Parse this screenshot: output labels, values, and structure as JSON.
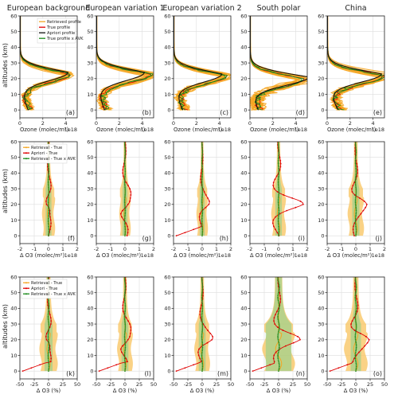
{
  "figure": {
    "column_titles": [
      "European background",
      "European variation 1",
      "European variation 2",
      "South polar",
      "China"
    ],
    "panel_letters": [
      "(a)",
      "(b)",
      "(c)",
      "(d)",
      "(e)",
      "(f)",
      "(g)",
      "(h)",
      "(i)",
      "(j)",
      "(k)",
      "(l)",
      "(m)",
      "(n)",
      "(o)"
    ],
    "ylabel": "altitudes (km)",
    "row_xlabels": [
      "Ozone (molec/m²)",
      "Δ O3 (molec/m²)",
      "Δ O3 (%)"
    ],
    "offset_text": "1e18",
    "colors": {
      "retrieved": "#f5a623",
      "true": "#e00000",
      "apriori": "#111111",
      "true_avk": "#1a8a1a",
      "band_orange": "#f8c35c",
      "band_green": "#8cd18c",
      "grid": "#dddddd"
    }
  },
  "chart_data": [
    {
      "type": "line",
      "row": 1,
      "legend": [
        "Retrieved profile",
        "True profile",
        "Apriori profile",
        "True profile x AVK"
      ],
      "legend_position": "top-right (panel a)",
      "xlim": [
        0,
        5
      ],
      "ylim": [
        -5,
        60
      ],
      "xticks": [
        0,
        2,
        4
      ],
      "yticks": [
        0,
        10,
        20,
        30,
        40,
        50,
        60
      ],
      "grid": true,
      "panels": [
        {
          "letter": "(a)",
          "title": "European background",
          "peak_alt": 23,
          "peak_val": 4.3,
          "apriori_peak": 4.1,
          "spread": 0.4,
          "low_val": 0.9
        },
        {
          "letter": "(b)",
          "title": "European variation 1",
          "peak_alt": 23,
          "peak_val": 4.7,
          "apriori_peak": 4.1,
          "spread": 0.5,
          "low_val": 0.9
        },
        {
          "letter": "(c)",
          "title": "European variation 2",
          "peak_alt": 22,
          "peak_val": 4.5,
          "apriori_peak": 4.1,
          "spread": 0.6,
          "low_val": 1.0
        },
        {
          "letter": "(d)",
          "title": "South polar",
          "peak_alt": 20,
          "peak_val": 4.5,
          "apriori_peak": 5.0,
          "spread": 0.9,
          "low_val": 0.9
        },
        {
          "letter": "(e)",
          "title": "China",
          "peak_alt": 22,
          "peak_val": 4.8,
          "apriori_peak": 4.6,
          "spread": 0.6,
          "low_val": 1.2
        }
      ]
    },
    {
      "type": "line",
      "row": 2,
      "legend": [
        "Retrieval - True",
        "Apriori - True",
        "Retrieval - True x AVK"
      ],
      "legend_position": "top-left (panel f)",
      "xlim": [
        -2,
        2
      ],
      "ylim": [
        -5,
        60
      ],
      "xticks": [
        -2,
        -1,
        0,
        1,
        2
      ],
      "yticks": [
        0,
        10,
        20,
        30,
        40,
        50,
        60
      ],
      "grid": true,
      "panels": [
        {
          "letter": "(f)",
          "apriori_amp": 0.7,
          "band": 0.4
        },
        {
          "letter": "(g)",
          "apriori_amp": 1.2,
          "band": 0.35
        },
        {
          "letter": "(h)",
          "apriori_amp": 0.6,
          "band": 0.35
        },
        {
          "letter": "(i)",
          "apriori_amp": 1.6,
          "band": 0.45
        },
        {
          "letter": "(j)",
          "apriori_amp": 1.0,
          "band": 0.5
        }
      ]
    },
    {
      "type": "line",
      "row": 3,
      "legend": [
        "Retrieval - True",
        "Apriori - True",
        "Retrieval - True x AVK"
      ],
      "legend_position": "top-left (panel k)",
      "xlim": [
        -50,
        50
      ],
      "ylim": [
        -5,
        60
      ],
      "xticks": [
        -50,
        -25,
        0,
        25,
        50
      ],
      "yticks": [
        0,
        10,
        20,
        30,
        40,
        50,
        60
      ],
      "grid": true,
      "panels": [
        {
          "letter": "(k)",
          "apriori_amp": 18,
          "band": 14
        },
        {
          "letter": "(l)",
          "apriori_amp": 30,
          "band": 12
        },
        {
          "letter": "(m)",
          "apriori_amp": 22,
          "band": 12
        },
        {
          "letter": "(n)",
          "apriori_amp": 35,
          "band": 25
        },
        {
          "letter": "(o)",
          "apriori_amp": 30,
          "band": 18
        }
      ]
    }
  ]
}
